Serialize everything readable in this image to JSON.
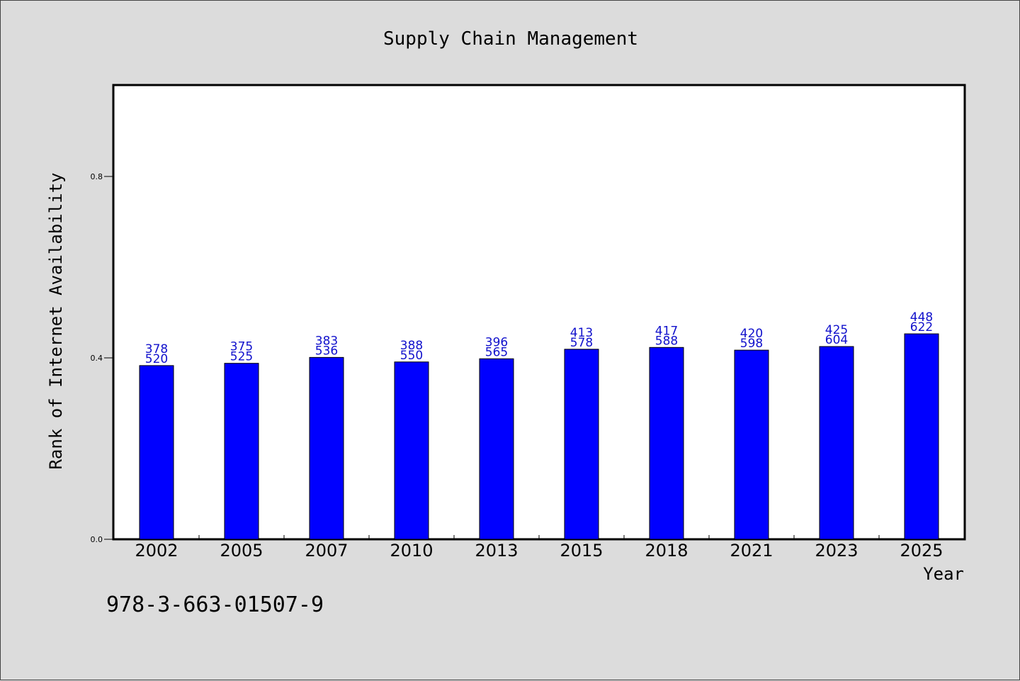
{
  "chart_data": {
    "type": "bar",
    "title": "Supply Chain Management",
    "xlabel": "Year",
    "ylabel": "Rank of Internet Availability",
    "categories": [
      "2002",
      "2005",
      "2007",
      "2010",
      "2013",
      "2015",
      "2018",
      "2021",
      "2023",
      "2025"
    ],
    "values": [
      0.383,
      0.388,
      0.401,
      0.391,
      0.398,
      0.419,
      0.423,
      0.417,
      0.425,
      0.453
    ],
    "labels_top": [
      "378",
      "375",
      "383",
      "388",
      "396",
      "413",
      "417",
      "420",
      "425",
      "448"
    ],
    "labels_bottom": [
      "520",
      "525",
      "536",
      "550",
      "565",
      "578",
      "588",
      "598",
      "604",
      "622"
    ],
    "yticks": [
      "0.0",
      "0.4",
      "0.8"
    ],
    "ylim": [
      0,
      1.0
    ],
    "grid": false,
    "bar_color": "#0000ff",
    "label_color": "#1111cc"
  },
  "footer": {
    "code": "978-3-663-01507-9"
  }
}
